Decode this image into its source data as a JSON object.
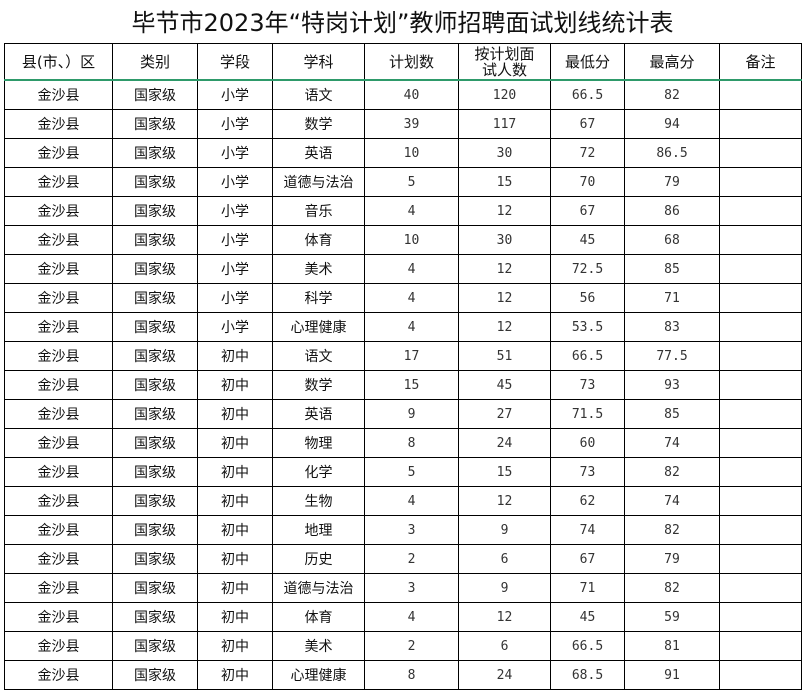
{
  "title": "毕节市2023年“特岗计划”教师招聘面试划线统计表",
  "headers": [
    "县(市、）区",
    "类别",
    "学段",
    "学科",
    "计划数",
    "按计划面试人数",
    "最低分",
    "最高分",
    "备注"
  ],
  "rows": [
    [
      "金沙县",
      "国家级",
      "小学",
      "语文",
      "40",
      "120",
      "66.5",
      "82",
      ""
    ],
    [
      "金沙县",
      "国家级",
      "小学",
      "数学",
      "39",
      "117",
      "67",
      "94",
      ""
    ],
    [
      "金沙县",
      "国家级",
      "小学",
      "英语",
      "10",
      "30",
      "72",
      "86.5",
      ""
    ],
    [
      "金沙县",
      "国家级",
      "小学",
      "道德与法治",
      "5",
      "15",
      "70",
      "79",
      ""
    ],
    [
      "金沙县",
      "国家级",
      "小学",
      "音乐",
      "4",
      "12",
      "67",
      "86",
      ""
    ],
    [
      "金沙县",
      "国家级",
      "小学",
      "体育",
      "10",
      "30",
      "45",
      "68",
      ""
    ],
    [
      "金沙县",
      "国家级",
      "小学",
      "美术",
      "4",
      "12",
      "72.5",
      "85",
      ""
    ],
    [
      "金沙县",
      "国家级",
      "小学",
      "科学",
      "4",
      "12",
      "56",
      "71",
      ""
    ],
    [
      "金沙县",
      "国家级",
      "小学",
      "心理健康",
      "4",
      "12",
      "53.5",
      "83",
      ""
    ],
    [
      "金沙县",
      "国家级",
      "初中",
      "语文",
      "17",
      "51",
      "66.5",
      "77.5",
      ""
    ],
    [
      "金沙县",
      "国家级",
      "初中",
      "数学",
      "15",
      "45",
      "73",
      "93",
      ""
    ],
    [
      "金沙县",
      "国家级",
      "初中",
      "英语",
      "9",
      "27",
      "71.5",
      "85",
      ""
    ],
    [
      "金沙县",
      "国家级",
      "初中",
      "物理",
      "8",
      "24",
      "60",
      "74",
      ""
    ],
    [
      "金沙县",
      "国家级",
      "初中",
      "化学",
      "5",
      "15",
      "73",
      "82",
      ""
    ],
    [
      "金沙县",
      "国家级",
      "初中",
      "生物",
      "4",
      "12",
      "62",
      "74",
      ""
    ],
    [
      "金沙县",
      "国家级",
      "初中",
      "地理",
      "3",
      "9",
      "74",
      "82",
      ""
    ],
    [
      "金沙县",
      "国家级",
      "初中",
      "历史",
      "2",
      "6",
      "67",
      "79",
      ""
    ],
    [
      "金沙县",
      "国家级",
      "初中",
      "道德与法治",
      "3",
      "9",
      "71",
      "82",
      ""
    ],
    [
      "金沙县",
      "国家级",
      "初中",
      "体育",
      "4",
      "12",
      "45",
      "59",
      ""
    ],
    [
      "金沙县",
      "国家级",
      "初中",
      "美术",
      "2",
      "6",
      "66.5",
      "81",
      ""
    ],
    [
      "金沙县",
      "国家级",
      "初中",
      "心理健康",
      "8",
      "24",
      "68.5",
      "91",
      ""
    ]
  ]
}
